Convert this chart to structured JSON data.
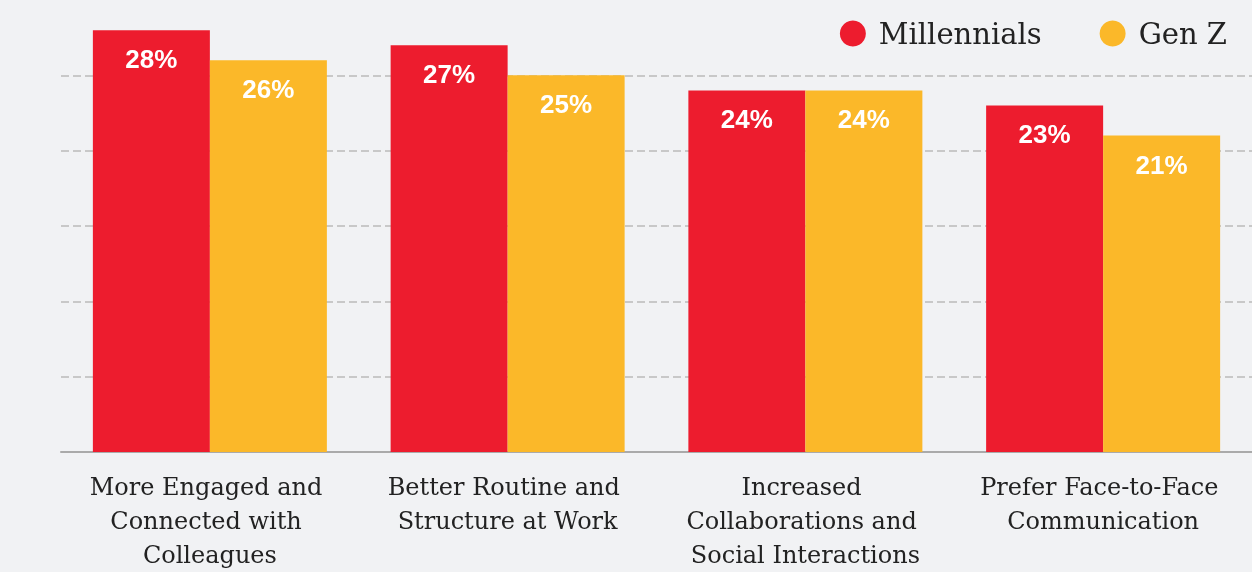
{
  "chart_data": {
    "type": "bar",
    "categories": [
      "More Engaged and Connected with Colleagues",
      "Better Routine and Structure at Work",
      "Increased Collaborations and Social Interactions",
      "Prefer Face-to-Face Communication"
    ],
    "series": [
      {
        "name": "Millennials",
        "color": "#ed1c2e",
        "values": [
          28,
          27,
          24,
          23
        ],
        "value_labels": [
          "28%",
          "27%",
          "24%",
          "23%"
        ]
      },
      {
        "name": "Gen Z",
        "color": "#fbb829",
        "values": [
          26,
          25,
          24,
          21
        ],
        "value_labels": [
          "26%",
          "25%",
          "24%",
          "21%"
        ]
      }
    ],
    "yticks": [
      {
        "value": 0,
        "label": null
      },
      {
        "value": 5,
        "label": null
      },
      {
        "value": 10,
        "label": null
      },
      {
        "value": 15,
        "label": null
      },
      {
        "value": 20,
        "label": null
      },
      {
        "value": 25,
        "label": null
      }
    ],
    "tick_labels": "x",
    "grid": "y",
    "legend": "top right"
  }
}
